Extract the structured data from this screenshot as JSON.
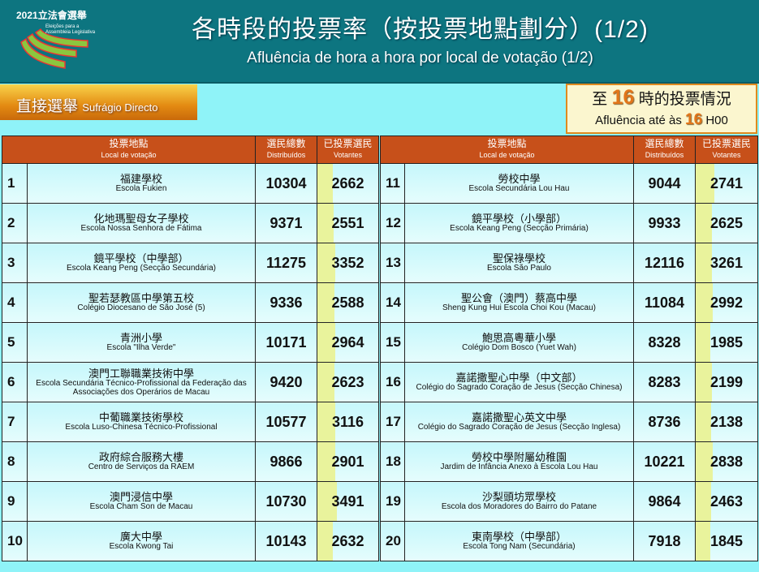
{
  "header": {
    "logo_year": "2021立法會選舉",
    "logo_pt": "Eleições para a Assembleia Legislativa",
    "title_zh": "各時段的投票率（按投票地點劃分）(1/2)",
    "title_pt": "Afluência de hora a hora por local de votação (1/2)"
  },
  "suffrage": {
    "zh": "直接選舉",
    "pt": "Sufrágio Directo"
  },
  "time_box": {
    "zh_pre": "至",
    "hour": "16",
    "zh_post": "時的投票情況",
    "pt_pre": "Afluência até às",
    "pt_post": "H00"
  },
  "columns": {
    "place_zh": "投票地點",
    "place_pt": "Local de votação",
    "total_zh": "選民總數",
    "total_pt": "Distribuídos",
    "voted_zh": "已投票選民",
    "voted_pt": "Votantes"
  },
  "colors": {
    "header": "#0d7580",
    "column_header": "#c7501a",
    "bar": "#e9f39c",
    "accent": "#e2761a"
  },
  "rows": [
    {
      "n": "1",
      "zh": "福建學校",
      "pt": "Escola Fukien",
      "total": "10304",
      "voted": "2662"
    },
    {
      "n": "2",
      "zh": "化地瑪聖母女子學校",
      "pt": "Escola Nossa Senhora de Fátima",
      "total": "9371",
      "voted": "2551"
    },
    {
      "n": "3",
      "zh": "鏡平學校（中學部）",
      "pt": "Escola Keang Peng (Secção Secundária)",
      "total": "11275",
      "voted": "3352"
    },
    {
      "n": "4",
      "zh": "聖若瑟教區中學第五校",
      "pt": "Colégio Diocesano de São José (5)",
      "total": "9336",
      "voted": "2588"
    },
    {
      "n": "5",
      "zh": "青洲小學",
      "pt": "Escola \"Ilha Verde\"",
      "total": "10171",
      "voted": "2964"
    },
    {
      "n": "6",
      "zh": "澳門工聯職業技術中學",
      "pt": "Escola Secundária Técnico-Profissional da Federação das Associações dos Operários de Macau",
      "total": "9420",
      "voted": "2623"
    },
    {
      "n": "7",
      "zh": "中葡職業技術學校",
      "pt": "Escola Luso-Chinesa Técnico-Profissional",
      "total": "10577",
      "voted": "3116"
    },
    {
      "n": "8",
      "zh": "政府綜合服務大樓",
      "pt": "Centro de Serviços da RAEM",
      "total": "9866",
      "voted": "2901"
    },
    {
      "n": "9",
      "zh": "澳門浸信中學",
      "pt": "Escola Cham Son de Macau",
      "total": "10730",
      "voted": "3491"
    },
    {
      "n": "10",
      "zh": "廣大中學",
      "pt": "Escola Kwong Tai",
      "total": "10143",
      "voted": "2632"
    },
    {
      "n": "11",
      "zh": "勞校中學",
      "pt": "Escola Secundária Lou Hau",
      "total": "9044",
      "voted": "2741"
    },
    {
      "n": "12",
      "zh": "鏡平學校（小學部）",
      "pt": "Escola Keang Peng (Secção Primária)",
      "total": "9933",
      "voted": "2625"
    },
    {
      "n": "13",
      "zh": "聖保祿學校",
      "pt": "Escola São Paulo",
      "total": "12116",
      "voted": "3261"
    },
    {
      "n": "14",
      "zh": "聖公會（澳門）蔡高中學",
      "pt": "Sheng Kung Hui Escola Choi Kou (Macau)",
      "total": "11084",
      "voted": "2992"
    },
    {
      "n": "15",
      "zh": "鮑思高粵華小學",
      "pt": "Colégio Dom Bosco (Yuet Wah)",
      "total": "8328",
      "voted": "1985"
    },
    {
      "n": "16",
      "zh": "嘉諾撒聖心中學（中文部）",
      "pt": "Colégio do Sagrado Coração de Jesus (Secção Chinesa)",
      "total": "8283",
      "voted": "2199"
    },
    {
      "n": "17",
      "zh": "嘉諾撒聖心英文中學",
      "pt": "Colégio do Sagrado Coração de Jesus (Secção Inglesa)",
      "total": "8736",
      "voted": "2138"
    },
    {
      "n": "18",
      "zh": "勞校中學附屬幼稚園",
      "pt": "Jardim de Infância Anexo à Escola Lou Hau",
      "total": "10221",
      "voted": "2838"
    },
    {
      "n": "19",
      "zh": "沙梨頭坊眾學校",
      "pt": "Escola dos Moradores do Bairro do Patane",
      "total": "9864",
      "voted": "2463"
    },
    {
      "n": "20",
      "zh": "東南學校（中學部）",
      "pt": "Escola Tong Nam (Secundária)",
      "total": "7918",
      "voted": "1845"
    }
  ]
}
